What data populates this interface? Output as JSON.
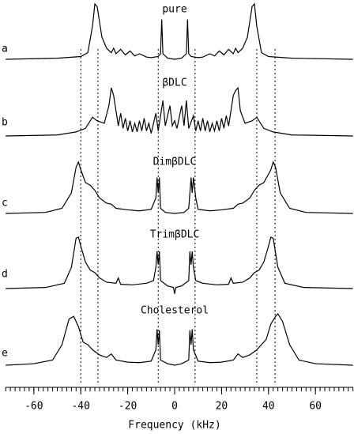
{
  "chart_data": {
    "type": "line",
    "xlabel": "Frequency (kHz)",
    "xlim": [
      -72,
      76
    ],
    "xticks": [
      -60,
      -40,
      -20,
      0,
      20,
      40,
      60
    ],
    "xminorticks": [
      -72,
      -70,
      -68,
      -66,
      -64,
      -62,
      -60,
      -58,
      -56,
      -54,
      -52,
      -50,
      -48,
      -46,
      -44,
      -42,
      -40,
      -38,
      -36,
      -34,
      -32,
      -30,
      -28,
      -26,
      -24,
      -22,
      -20,
      -18,
      -16,
      -14,
      -12,
      -10,
      -8,
      -6,
      -4,
      -2,
      0,
      2,
      4,
      6,
      8,
      10,
      12,
      14,
      16,
      18,
      20,
      22,
      24,
      26,
      28,
      30,
      32,
      34,
      36,
      38,
      40,
      42,
      44,
      46,
      48,
      50,
      52,
      54,
      56,
      58,
      60,
      62,
      64,
      66,
      68,
      70,
      72,
      74,
      76
    ],
    "ylim": [
      0,
      1
    ],
    "reference_lines": [
      -40,
      -32.7,
      -7,
      8.7,
      35,
      42.8
    ],
    "series": [
      {
        "name": "pure",
        "label": "a",
        "color": "#000000",
        "x": [
          -72,
          -50,
          -40,
          -37,
          -35,
          -34,
          -33,
          -31,
          -29,
          -27,
          -26,
          -25,
          -23,
          -21,
          -19,
          -17,
          -15,
          -12,
          -10,
          -7,
          -6,
          -5.5,
          -5,
          -3,
          0,
          3,
          5,
          5.5,
          6,
          7,
          10,
          12,
          15,
          17,
          19,
          21,
          23,
          25,
          26,
          27,
          29,
          31,
          33,
          34,
          35,
          37,
          40,
          50,
          76
        ],
        "values": [
          0,
          0.02,
          0.05,
          0.12,
          0.6,
          1.0,
          0.95,
          0.4,
          0.2,
          0.12,
          0.2,
          0.1,
          0.18,
          0.08,
          0.15,
          0.06,
          0.1,
          0.04,
          0.03,
          0.05,
          0.1,
          0.72,
          0.1,
          0.02,
          0,
          0.02,
          0.1,
          0.72,
          0.1,
          0.05,
          0.03,
          0.04,
          0.1,
          0.06,
          0.15,
          0.08,
          0.18,
          0.1,
          0.2,
          0.12,
          0.2,
          0.4,
          0.95,
          1.0,
          0.6,
          0.12,
          0.05,
          0.02,
          0
        ]
      },
      {
        "name": "βDLC",
        "label": "b",
        "color": "#000000",
        "x": [
          -72,
          -50,
          -42,
          -38,
          -35,
          -33,
          -30,
          -28,
          -27,
          -26,
          -25,
          -24,
          -23,
          -22,
          -21,
          -20,
          -19,
          -18,
          -17,
          -16,
          -15,
          -14,
          -13,
          -12,
          -11,
          -10,
          -8,
          -7,
          -5,
          -4,
          -2,
          -1,
          0,
          1,
          3,
          4,
          5,
          6,
          8,
          9,
          10,
          11,
          12,
          13,
          14,
          15,
          16,
          17,
          18,
          19,
          20,
          21,
          22,
          23,
          24,
          25,
          26,
          27,
          28,
          30,
          33,
          35,
          38,
          42,
          50,
          76
        ],
        "values": [
          0,
          0.02,
          0.08,
          0.15,
          0.37,
          0.3,
          0.25,
          0.6,
          0.95,
          0.8,
          0.5,
          0.2,
          0.45,
          0.15,
          0.35,
          0.1,
          0.3,
          0.08,
          0.25,
          0.08,
          0.3,
          0.1,
          0.35,
          0.1,
          0.25,
          0.05,
          0.45,
          0.1,
          0.7,
          0.2,
          0.6,
          0.2,
          0.3,
          0.15,
          0.6,
          0.2,
          0.7,
          0.15,
          0.4,
          0.1,
          0.3,
          0.1,
          0.35,
          0.1,
          0.3,
          0.08,
          0.25,
          0.1,
          0.3,
          0.1,
          0.35,
          0.15,
          0.4,
          0.2,
          0.5,
          0.8,
          0.9,
          0.95,
          0.5,
          0.25,
          0.3,
          0.37,
          0.15,
          0.08,
          0.02,
          0
        ]
      },
      {
        "name": "DimβDLC",
        "label": "c",
        "color": "#000000",
        "x": [
          -72,
          -55,
          -48,
          -44,
          -42,
          -41,
          -40,
          -38,
          -36,
          -34,
          -32,
          -29,
          -27,
          -25,
          -20,
          -15,
          -10,
          -8,
          -7.5,
          -7,
          -6.5,
          -6,
          -4,
          0,
          4,
          6,
          7,
          7.5,
          8,
          9,
          10,
          15,
          20,
          25,
          27,
          29,
          32,
          34,
          36,
          38,
          41,
          42,
          43,
          45,
          49,
          56,
          76
        ],
        "values": [
          0,
          0.02,
          0.1,
          0.4,
          0.9,
          1.0,
          0.85,
          0.6,
          0.55,
          0.45,
          0.3,
          0.2,
          0.18,
          0.1,
          0.07,
          0.05,
          0.08,
          0.3,
          0.7,
          0.4,
          0.7,
          0.1,
          0.02,
          0,
          0.02,
          0.1,
          0.7,
          0.4,
          0.7,
          0.3,
          0.08,
          0.05,
          0.07,
          0.1,
          0.18,
          0.2,
          0.3,
          0.45,
          0.55,
          0.6,
          0.85,
          1.0,
          0.9,
          0.4,
          0.1,
          0.02,
          0
        ]
      },
      {
        "name": "TrimβDLC",
        "label": "d",
        "color": "#000000",
        "x": [
          -72,
          -55,
          -47,
          -44,
          -42,
          -41,
          -40,
          -38,
          -36,
          -34,
          -32,
          -29,
          -25,
          -24,
          -23,
          -18,
          -12,
          -9,
          -8,
          -7.5,
          -7,
          -6.5,
          -6,
          -3,
          -0.5,
          0,
          0.5,
          3,
          6,
          6.5,
          7,
          7.5,
          8,
          9,
          12,
          18,
          23,
          24,
          25,
          29,
          32,
          34,
          36,
          38,
          40,
          41,
          42,
          44,
          47,
          55,
          76
        ],
        "values": [
          0,
          0.02,
          0.1,
          0.4,
          0.95,
          0.97,
          0.8,
          0.5,
          0.35,
          0.3,
          0.2,
          0.12,
          0.1,
          0.2,
          0.08,
          0.07,
          0.1,
          0.15,
          0.4,
          0.7,
          0.45,
          0.7,
          0.15,
          0.05,
          0.02,
          -0.1,
          0.02,
          0.05,
          0.15,
          0.7,
          0.45,
          0.7,
          0.4,
          0.15,
          0.1,
          0.07,
          0.08,
          0.2,
          0.1,
          0.12,
          0.2,
          0.3,
          0.35,
          0.5,
          0.8,
          0.97,
          0.95,
          0.4,
          0.1,
          0.02,
          0
        ]
      },
      {
        "name": "Cholesterol",
        "label": "e",
        "color": "#000000",
        "x": [
          -72,
          -60,
          -52,
          -48,
          -45,
          -43,
          -41,
          -39,
          -37,
          -35,
          -32,
          -29,
          -27,
          -25,
          -20,
          -15,
          -10,
          -8,
          -7.5,
          -7,
          -6.5,
          -6,
          -3,
          0,
          3,
          6,
          6.5,
          7,
          7.5,
          8,
          10,
          15,
          20,
          25,
          27,
          29,
          32,
          35,
          37,
          39,
          41,
          43,
          44,
          46,
          49,
          53,
          60,
          76
        ],
        "values": [
          0,
          0.03,
          0.1,
          0.4,
          0.9,
          0.95,
          0.75,
          0.45,
          0.4,
          0.3,
          0.2,
          0.15,
          0.22,
          0.1,
          0.06,
          0.05,
          0.08,
          0.3,
          0.7,
          0.4,
          0.68,
          0.1,
          0.03,
          0,
          0.03,
          0.1,
          0.68,
          0.4,
          0.7,
          0.3,
          0.08,
          0.05,
          0.06,
          0.1,
          0.22,
          0.15,
          0.2,
          0.3,
          0.4,
          0.5,
          0.8,
          0.95,
          1.0,
          0.85,
          0.4,
          0.1,
          0.03,
          0
        ]
      }
    ]
  }
}
